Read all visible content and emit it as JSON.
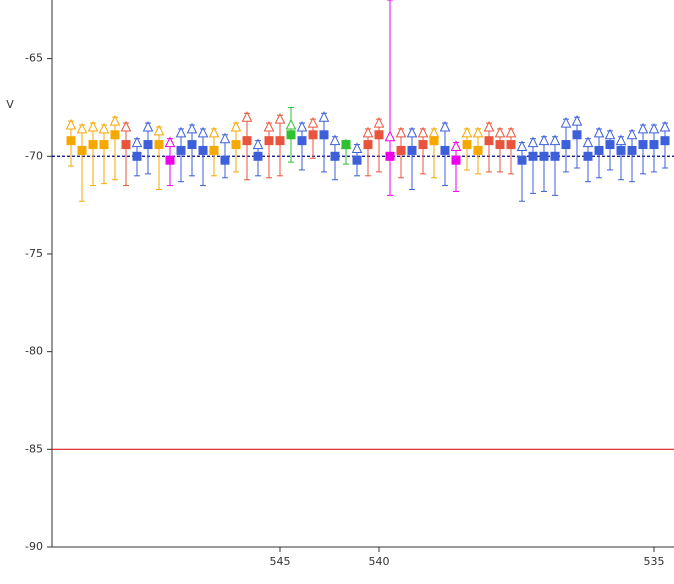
{
  "chart_data": {
    "type": "errorbar",
    "y_label": "V",
    "categories": [
      null,
      null,
      null,
      null,
      null,
      null,
      null,
      null,
      null,
      null,
      null,
      null,
      null,
      null,
      null,
      null,
      null,
      null,
      null,
      "545",
      null,
      null,
      null,
      null,
      null,
      null,
      null,
      null,
      "540",
      null,
      null,
      null,
      null,
      null,
      null,
      null,
      null,
      null,
      null,
      null,
      null,
      null,
      null,
      null,
      null,
      null,
      null,
      null,
      null,
      null,
      null,
      null,
      null,
      "535",
      null
    ],
    "values": [
      -69.2,
      -69.7,
      -69.4,
      -69.4,
      -68.9,
      -69.4,
      -70.0,
      -69.4,
      -69.4,
      -70.2,
      -69.7,
      -69.4,
      -69.7,
      -69.7,
      -70.2,
      -69.4,
      -69.2,
      -70.0,
      -69.2,
      -69.2,
      -68.9,
      -69.2,
      -68.9,
      -68.9,
      -70.0,
      -69.4,
      -70.2,
      -69.4,
      -68.9,
      -70.0,
      -69.7,
      -69.7,
      -69.4,
      -69.2,
      -69.7,
      -70.2,
      -69.4,
      -69.7,
      -69.2,
      -69.4,
      -69.4,
      -70.2,
      -70.0,
      -70.0,
      -70.0,
      -69.4,
      -68.9,
      -70.0,
      -69.7,
      -69.4,
      -69.7,
      -69.7,
      -69.4,
      -69.4,
      -69.2
    ],
    "upper": [
      -68.4,
      -68.6,
      -68.5,
      -68.6,
      -68.2,
      -68.5,
      -69.3,
      -68.5,
      -68.7,
      -69.3,
      -68.8,
      -68.6,
      -68.8,
      -68.8,
      -69.1,
      -68.5,
      -68.0,
      -69.4,
      -68.5,
      -68.1,
      -68.4,
      -68.5,
      -68.3,
      -68.0,
      -69.2,
      -69.4,
      -69.6,
      -68.8,
      -68.3,
      -69.0,
      -68.8,
      -68.8,
      -68.8,
      -68.8,
      -68.5,
      -69.5,
      -68.8,
      -68.8,
      -68.5,
      -68.8,
      -68.8,
      -69.5,
      -69.3,
      -69.2,
      -69.2,
      -68.3,
      -68.2,
      -69.3,
      -68.8,
      -68.9,
      -69.2,
      -68.9,
      -68.6,
      -68.6,
      -68.5
    ],
    "low": [
      -70.5,
      -72.3,
      -71.5,
      -71.4,
      -71.2,
      -71.5,
      -71.0,
      -70.9,
      -71.7,
      -71.5,
      -71.3,
      -71.0,
      -71.5,
      -71.0,
      -71.1,
      -70.8,
      -71.2,
      -71.0,
      -71.1,
      -71.0,
      -70.3,
      -70.7,
      -70.1,
      -70.8,
      -71.2,
      -70.4,
      -71.0,
      -71.0,
      -70.8,
      -72.0,
      -71.1,
      -71.7,
      -70.9,
      -71.1,
      -71.5,
      -71.8,
      -70.7,
      -70.9,
      -70.8,
      -70.8,
      -70.9,
      -72.3,
      -71.9,
      -71.8,
      -72.0,
      -70.8,
      -70.6,
      -71.3,
      -71.1,
      -70.7,
      -71.2,
      -71.3,
      -70.9,
      -70.8,
      -70.6
    ],
    "high": [
      -68.2,
      -68.4,
      -68.3,
      -68.4,
      -68.0,
      -68.3,
      -69.1,
      -68.3,
      -68.5,
      -69.1,
      -68.6,
      -68.4,
      -68.6,
      -68.6,
      -68.9,
      -68.3,
      -67.8,
      -69.2,
      -68.3,
      -67.9,
      -67.5,
      -68.3,
      -68.1,
      -67.8,
      -69.0,
      -69.2,
      -69.4,
      -68.6,
      -68.1,
      -62,
      -68.6,
      -68.6,
      -68.6,
      -68.6,
      -68.3,
      -69.3,
      -68.6,
      -68.6,
      -68.3,
      -68.6,
      -68.6,
      -69.3,
      -69.1,
      -69.0,
      -69.0,
      -68.1,
      -68.0,
      -69.1,
      -68.6,
      -68.7,
      -69.0,
      -68.7,
      -68.4,
      -68.4,
      -68.3
    ],
    "colors": [
      "#f5a800",
      "#f5a800",
      "#f5a800",
      "#f5a800",
      "#f5a800",
      "#e8553c",
      "#3d5fd9",
      "#3d5fd9",
      "#f5a800",
      "#ee00ee",
      "#3d5fd9",
      "#3d5fd9",
      "#3d5fd9",
      "#f5a800",
      "#3d5fd9",
      "#f5a800",
      "#e8553c",
      "#3d5fd9",
      "#e8553c",
      "#e8553c",
      "#2fc12f",
      "#3d5fd9",
      "#e8553c",
      "#3d5fd9",
      "#3d5fd9",
      "#2fc12f",
      "#3d5fd9",
      "#e8553c",
      "#e8553c",
      "#ee00ee",
      "#e8553c",
      "#3d5fd9",
      "#e8553c",
      "#f5a800",
      "#3d5fd9",
      "#ee00ee",
      "#f5a800",
      "#f5a800",
      "#e8553c",
      "#e8553c",
      "#e8553c",
      "#3d5fd9",
      "#3d5fd9",
      "#3d5fd9",
      "#3d5fd9",
      "#3d5fd9",
      "#3d5fd9",
      "#3d5fd9",
      "#3d5fd9",
      "#3d5fd9",
      "#3d5fd9",
      "#3d5fd9",
      "#3d5fd9",
      "#3d5fd9",
      "#3d5fd9"
    ],
    "ref_lines": [
      {
        "value": -70,
        "color": "#000080",
        "dashed": true
      },
      {
        "value": -85,
        "color": "#e02020",
        "dashed": false
      }
    ],
    "ylim": [
      -90,
      -62
    ],
    "yticks": [
      -90,
      -85,
      -80,
      -75,
      -70,
      -65
    ]
  }
}
